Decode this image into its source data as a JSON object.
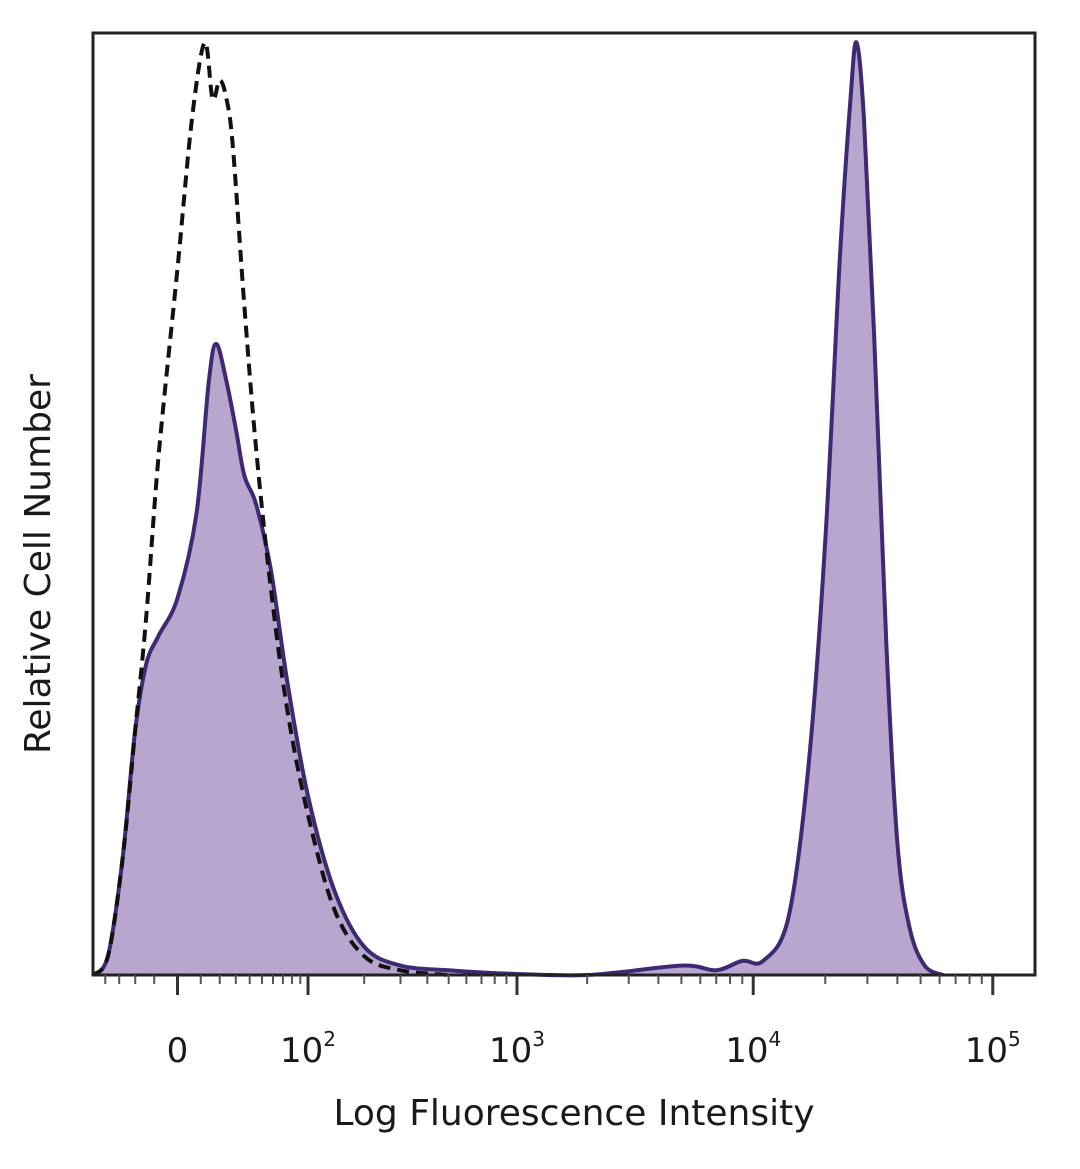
{
  "chart_data": {
    "type": "area",
    "xlabel": "Log Fluorescence Intensity",
    "ylabel": "Relative Cell Number",
    "x_scale": "biexponential",
    "xlim": [
      -50,
      150000
    ],
    "ylim": [
      0,
      1
    ],
    "grid": false,
    "x_tick_labels": [
      {
        "value": 0,
        "base": "0",
        "exp": ""
      },
      {
        "value": 100,
        "base": "10",
        "exp": "2"
      },
      {
        "value": 1000,
        "base": "10",
        "exp": "3"
      },
      {
        "value": 10000,
        "base": "10",
        "exp": "4"
      },
      {
        "value": 100000,
        "base": "10",
        "exp": "5"
      }
    ],
    "colors": {
      "stained_fill": "#b9a6cf",
      "stained_line": "#3e2a73",
      "control_line": "#111111",
      "frame": "#222222"
    },
    "series": [
      {
        "style": "filled-solid",
        "points": [
          [
            -50,
            0.0
          ],
          [
            -38,
            0.02
          ],
          [
            -28,
            0.12
          ],
          [
            -20,
            0.26
          ],
          [
            -14,
            0.33
          ],
          [
            -8,
            0.36
          ],
          [
            0,
            0.4
          ],
          [
            8,
            0.49
          ],
          [
            14,
            0.63
          ],
          [
            18,
            0.67
          ],
          [
            24,
            0.63
          ],
          [
            30,
            0.58
          ],
          [
            36,
            0.53
          ],
          [
            45,
            0.5
          ],
          [
            58,
            0.43
          ],
          [
            75,
            0.31
          ],
          [
            100,
            0.19
          ],
          [
            140,
            0.09
          ],
          [
            200,
            0.03
          ],
          [
            300,
            0.01
          ],
          [
            500,
            0.005
          ],
          [
            800,
            0.002
          ],
          [
            2000,
            0.0
          ],
          [
            5000,
            0.01
          ],
          [
            7000,
            0.005
          ],
          [
            9000,
            0.015
          ],
          [
            11000,
            0.015
          ],
          [
            14000,
            0.06
          ],
          [
            17000,
            0.22
          ],
          [
            20000,
            0.46
          ],
          [
            23000,
            0.76
          ],
          [
            25500,
            0.93
          ],
          [
            27000,
            0.99
          ],
          [
            29000,
            0.91
          ],
          [
            32000,
            0.68
          ],
          [
            36000,
            0.35
          ],
          [
            40000,
            0.14
          ],
          [
            45000,
            0.05
          ],
          [
            52000,
            0.01
          ],
          [
            62000,
            0.0
          ]
        ]
      },
      {
        "style": "dashed",
        "points": [
          [
            -50,
            0.0
          ],
          [
            -38,
            0.02
          ],
          [
            -28,
            0.12
          ],
          [
            -20,
            0.26
          ],
          [
            -14,
            0.38
          ],
          [
            -8,
            0.55
          ],
          [
            0,
            0.75
          ],
          [
            6,
            0.91
          ],
          [
            12,
            0.99
          ],
          [
            16,
            0.93
          ],
          [
            20,
            0.95
          ],
          [
            24,
            0.93
          ],
          [
            28,
            0.88
          ],
          [
            36,
            0.71
          ],
          [
            45,
            0.56
          ],
          [
            58,
            0.41
          ],
          [
            75,
            0.28
          ],
          [
            100,
            0.17
          ],
          [
            140,
            0.07
          ],
          [
            200,
            0.02
          ],
          [
            300,
            0.005
          ],
          [
            500,
            0.0
          ]
        ]
      }
    ]
  }
}
